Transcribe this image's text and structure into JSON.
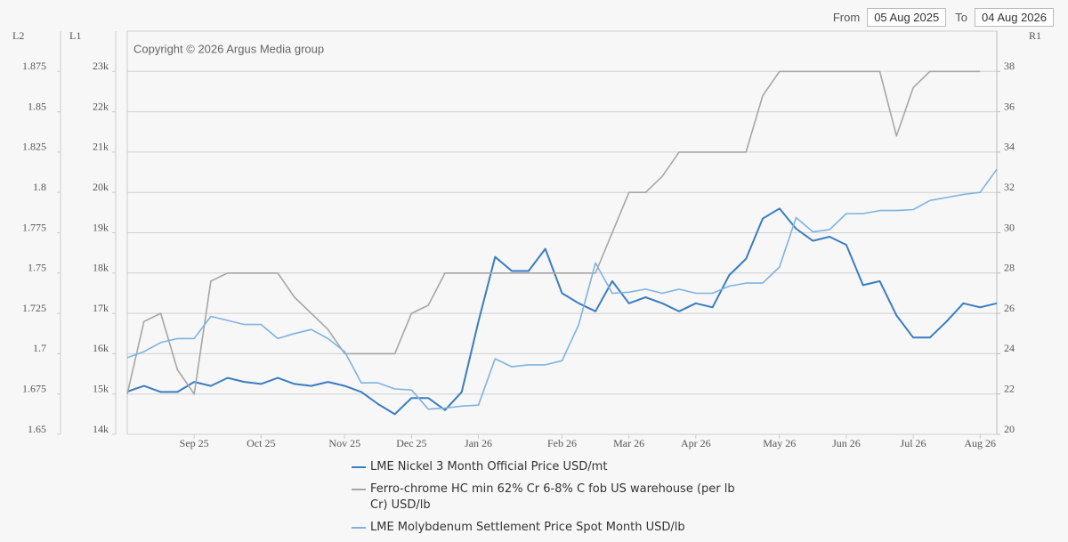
{
  "chart_data": {
    "type": "line",
    "from_label": "From",
    "from_date": "05 Aug 2025",
    "to_label": "To",
    "to_date": "04 Aug 2026",
    "copyright": "Copyright © 2026 Argus Media group",
    "y_label": "L1",
    "y2_label": "R1",
    "y3_label": "L2",
    "categories": [
      null,
      null,
      null,
      null,
      "Sep 25",
      null,
      null,
      null,
      "Oct 25",
      null,
      null,
      null,
      null,
      "Nov 25",
      null,
      null,
      null,
      "Dec 25",
      null,
      null,
      null,
      "Jan 26",
      null,
      null,
      null,
      null,
      "Feb 26",
      null,
      null,
      null,
      "Mar 26",
      null,
      null,
      null,
      "Apr 26",
      null,
      null,
      null,
      null,
      "May 26",
      null,
      null,
      null,
      "Jun 26",
      null,
      null,
      null,
      "Jul 26",
      null,
      null,
      null,
      "Aug 26",
      null
    ],
    "ylim": [
      14000,
      24000
    ],
    "yticks": [
      {
        "value": 14000,
        "label": "14k"
      },
      {
        "value": 15000,
        "label": "15k"
      },
      {
        "value": 16000,
        "label": "16k"
      },
      {
        "value": 17000,
        "label": "17k"
      },
      {
        "value": 18000,
        "label": "18k"
      },
      {
        "value": 19000,
        "label": "19k"
      },
      {
        "value": 20000,
        "label": "20k"
      },
      {
        "value": 21000,
        "label": "21k"
      },
      {
        "value": 22000,
        "label": "22k"
      },
      {
        "value": 23000,
        "label": "23k"
      }
    ],
    "y2lim": [
      20,
      40
    ],
    "y2ticks": [
      20,
      22,
      24,
      26,
      28,
      30,
      32,
      34,
      36,
      38
    ],
    "y3lim": [
      1.65,
      1.9
    ],
    "y3ticks": [
      1.65,
      1.675,
      1.7,
      1.725,
      1.75,
      1.775,
      1.8,
      1.825,
      1.85,
      1.875
    ],
    "grid": true,
    "series": [
      {
        "name": "LME Nickel 3 Month Official Price USD/mt",
        "color": "#3a7dc0",
        "axis": "y",
        "values": [
          15060,
          15200,
          15050,
          15050,
          15300,
          15200,
          15400,
          15300,
          15250,
          15400,
          15250,
          15200,
          15300,
          15200,
          15050,
          14750,
          14500,
          14900,
          14900,
          14600,
          15050,
          16800,
          18400,
          18050,
          18050,
          18600,
          17500,
          17250,
          17050,
          17800,
          17250,
          17400,
          17250,
          17050,
          17250,
          17150,
          17950,
          18350,
          19350,
          19600,
          19100,
          18800,
          18900,
          18700,
          17700,
          17800,
          16950,
          16400,
          16400,
          16800,
          17250,
          17150,
          17250
        ]
      },
      {
        "name": "Ferro-chrome HC min 62% Cr 6-8% C fob US warehouse (per lb Cr) USD/lb",
        "color": "#a6a6a6",
        "axis": "y3",
        "values": [
          1.675,
          1.72,
          1.725,
          1.69,
          1.675,
          1.745,
          1.75,
          1.75,
          1.75,
          1.75,
          1.735,
          1.725,
          1.715,
          1.7,
          1.7,
          1.7,
          1.7,
          1.725,
          1.73,
          1.75,
          1.75,
          1.75,
          1.75,
          1.75,
          1.75,
          1.75,
          1.75,
          1.75,
          1.75,
          1.775,
          1.8,
          1.8,
          1.81,
          1.825,
          1.825,
          1.825,
          1.825,
          1.825,
          1.86,
          1.875,
          1.875,
          1.875,
          1.875,
          1.875,
          1.875,
          1.875,
          1.835,
          1.865,
          1.875,
          1.875,
          1.875,
          1.875,
          null
        ]
      },
      {
        "name": "LME Molybdenum Settlement Price Spot Month USD/lb",
        "color": "#7fb2e0",
        "axis": "y2",
        "values": [
          23.8,
          24.1,
          24.55,
          24.75,
          24.75,
          25.85,
          25.65,
          25.45,
          25.45,
          24.75,
          25.0,
          25.2,
          24.75,
          24.1,
          22.55,
          22.55,
          22.25,
          22.2,
          21.25,
          21.3,
          21.4,
          21.45,
          23.75,
          23.35,
          23.45,
          23.45,
          23.65,
          25.45,
          28.5,
          27.0,
          27.05,
          27.2,
          27.0,
          27.2,
          27.0,
          27.0,
          27.35,
          27.5,
          27.5,
          28.3,
          30.75,
          30.05,
          30.15,
          30.95,
          30.95,
          31.1,
          31.1,
          31.15,
          31.6,
          31.75,
          31.9,
          32.0,
          33.15
        ]
      }
    ]
  }
}
